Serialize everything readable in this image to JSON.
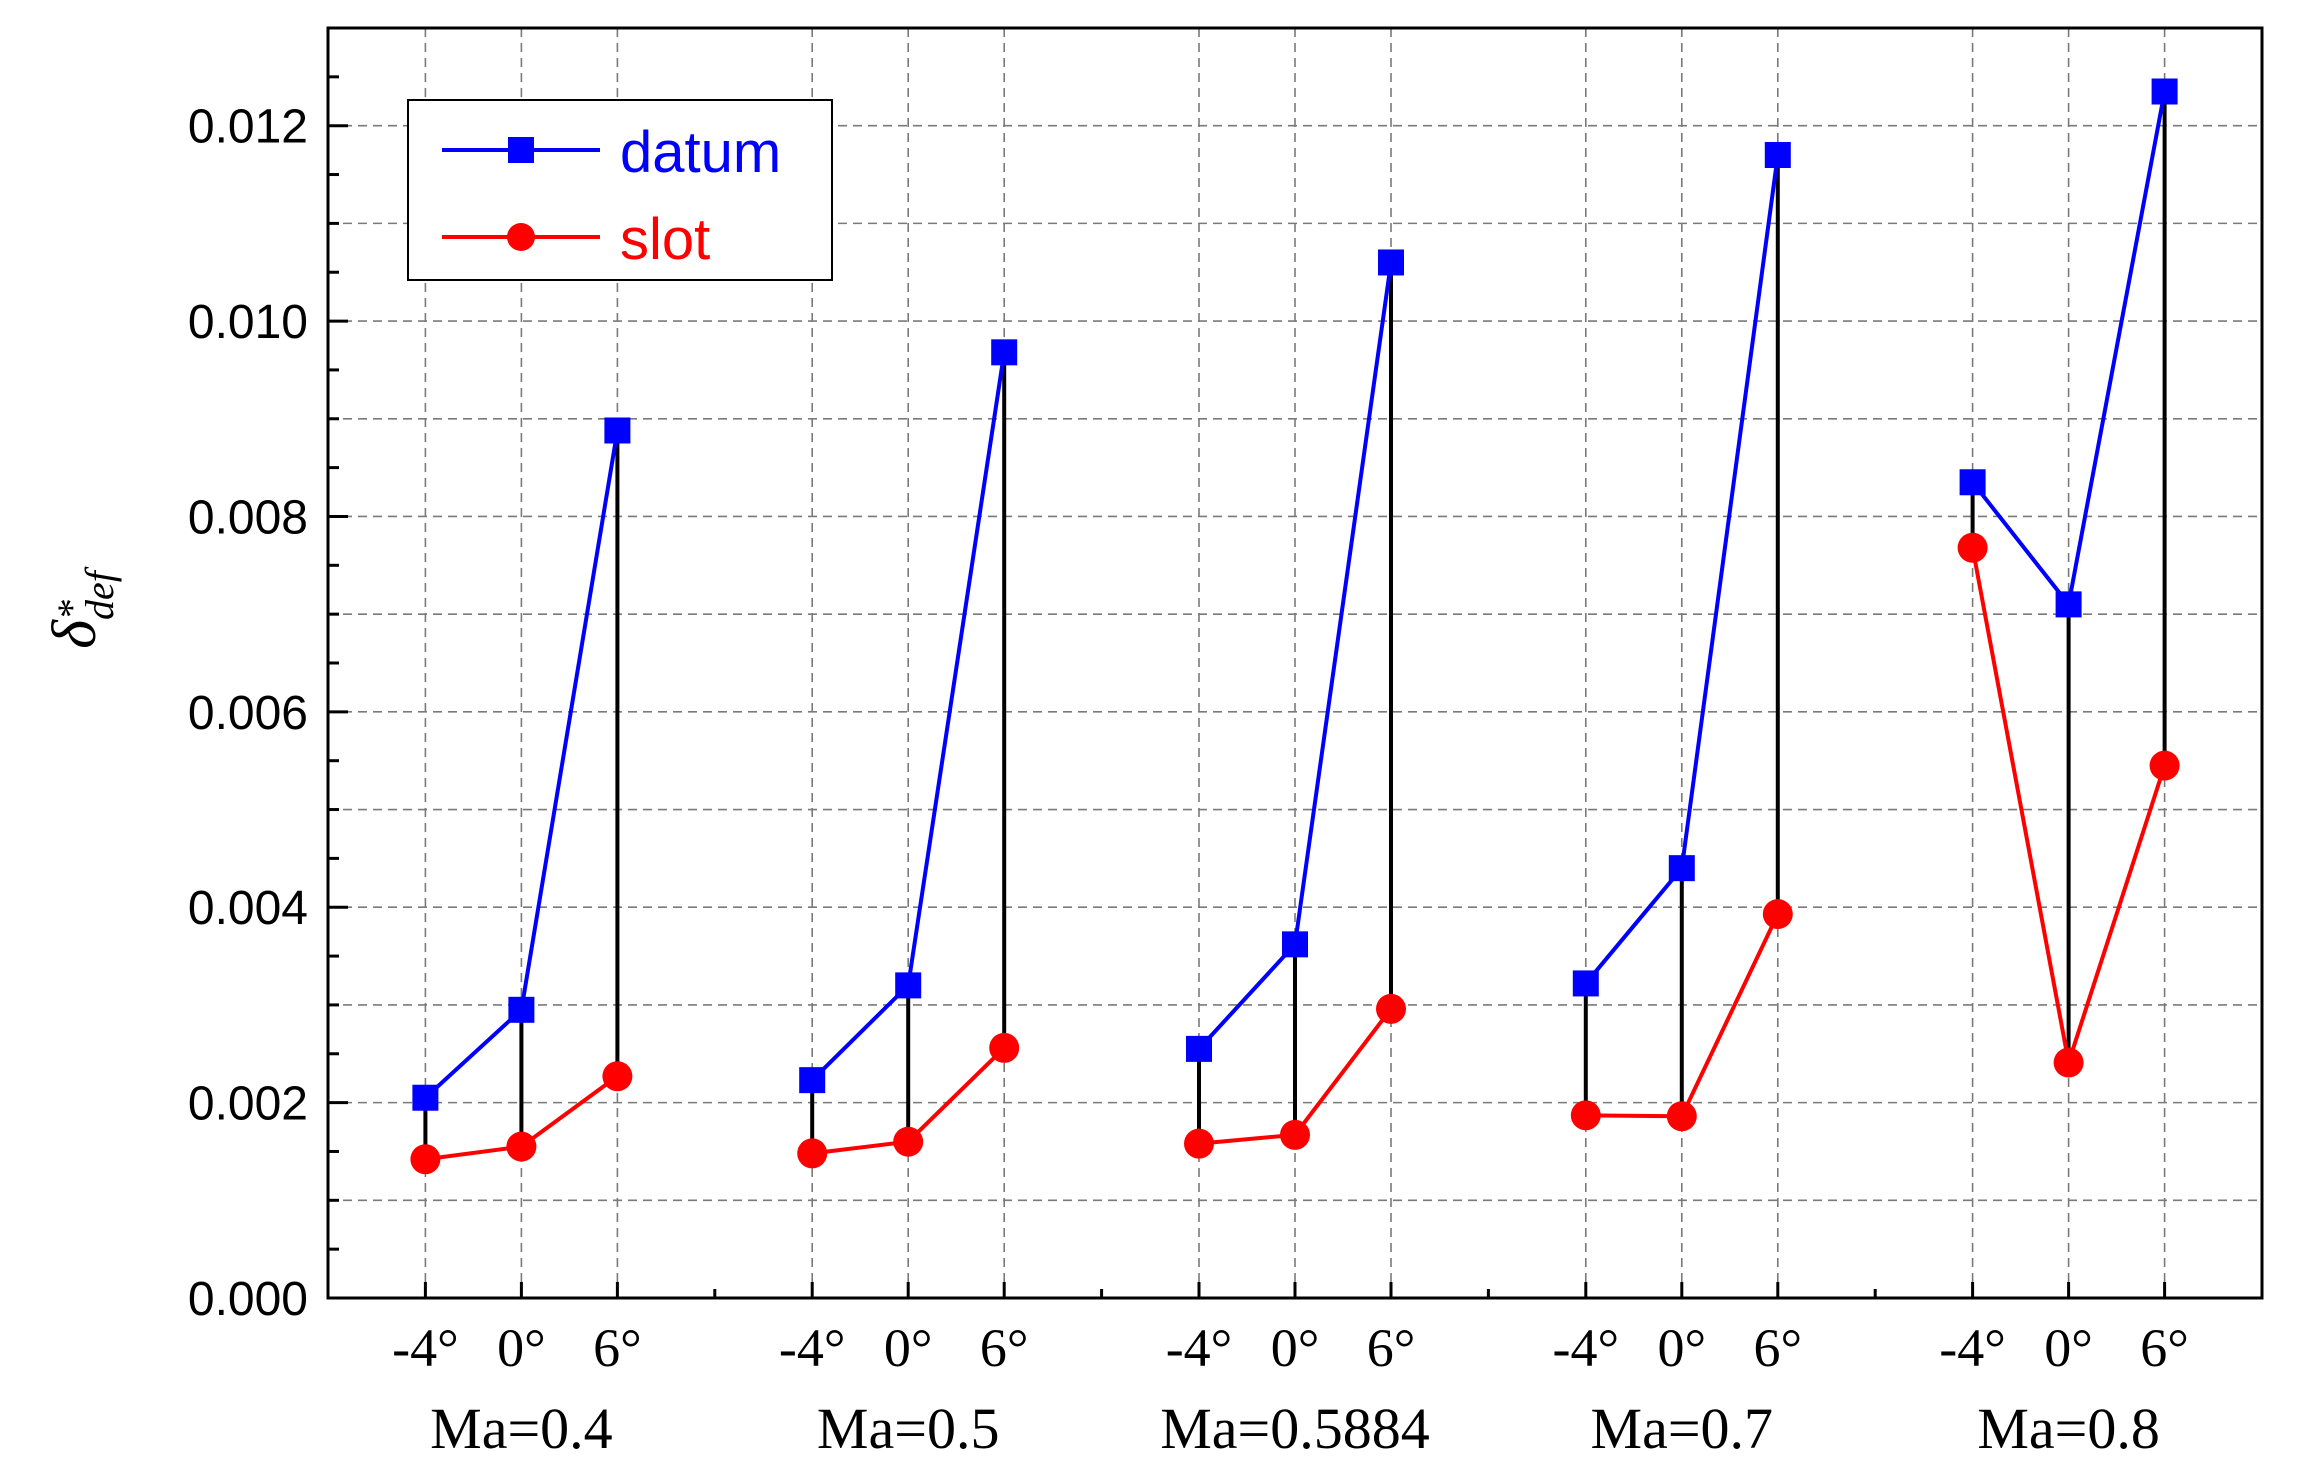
{
  "chart_data": {
    "type": "line",
    "ylim": [
      0,
      0.013
    ],
    "yticks": [
      "0.000",
      "0.002",
      "0.004",
      "0.006",
      "0.008",
      "0.010",
      "0.012"
    ],
    "ylabel": {
      "symbol": "δ",
      "superscript": "*",
      "subscript": "def"
    },
    "grid": true,
    "legend_position": "top-left",
    "groups": [
      {
        "label": "Ma=0.4",
        "angles": [
          "-4°",
          "0°",
          "6°"
        ]
      },
      {
        "label": "Ma=0.5",
        "angles": [
          "-4°",
          "0°",
          "6°"
        ]
      },
      {
        "label": "Ma=0.5884",
        "angles": [
          "-4°",
          "0°",
          "6°"
        ]
      },
      {
        "label": "Ma=0.7",
        "angles": [
          "-4°",
          "0°",
          "6°"
        ]
      },
      {
        "label": "Ma=0.8",
        "angles": [
          "-4°",
          "0°",
          "6°"
        ]
      }
    ],
    "series": [
      {
        "name": "datum",
        "color": "#0000ff",
        "marker": "square",
        "values": [
          [
            0.00205,
            0.00295,
            0.00888
          ],
          [
            0.00223,
            0.0032,
            0.00968
          ],
          [
            0.00255,
            0.00362,
            0.0106
          ],
          [
            0.00322,
            0.0044,
            0.0117
          ],
          [
            0.00835,
            0.0071,
            0.01235
          ]
        ]
      },
      {
        "name": "slot",
        "color": "#ff0000",
        "marker": "circle",
        "values": [
          [
            0.00142,
            0.00155,
            0.00227
          ],
          [
            0.00148,
            0.0016,
            0.00256
          ],
          [
            0.00158,
            0.00167,
            0.00296
          ],
          [
            0.00187,
            0.00186,
            0.00393
          ],
          [
            0.00768,
            0.00241,
            0.00545
          ]
        ]
      }
    ],
    "connector_color": "#000000"
  }
}
